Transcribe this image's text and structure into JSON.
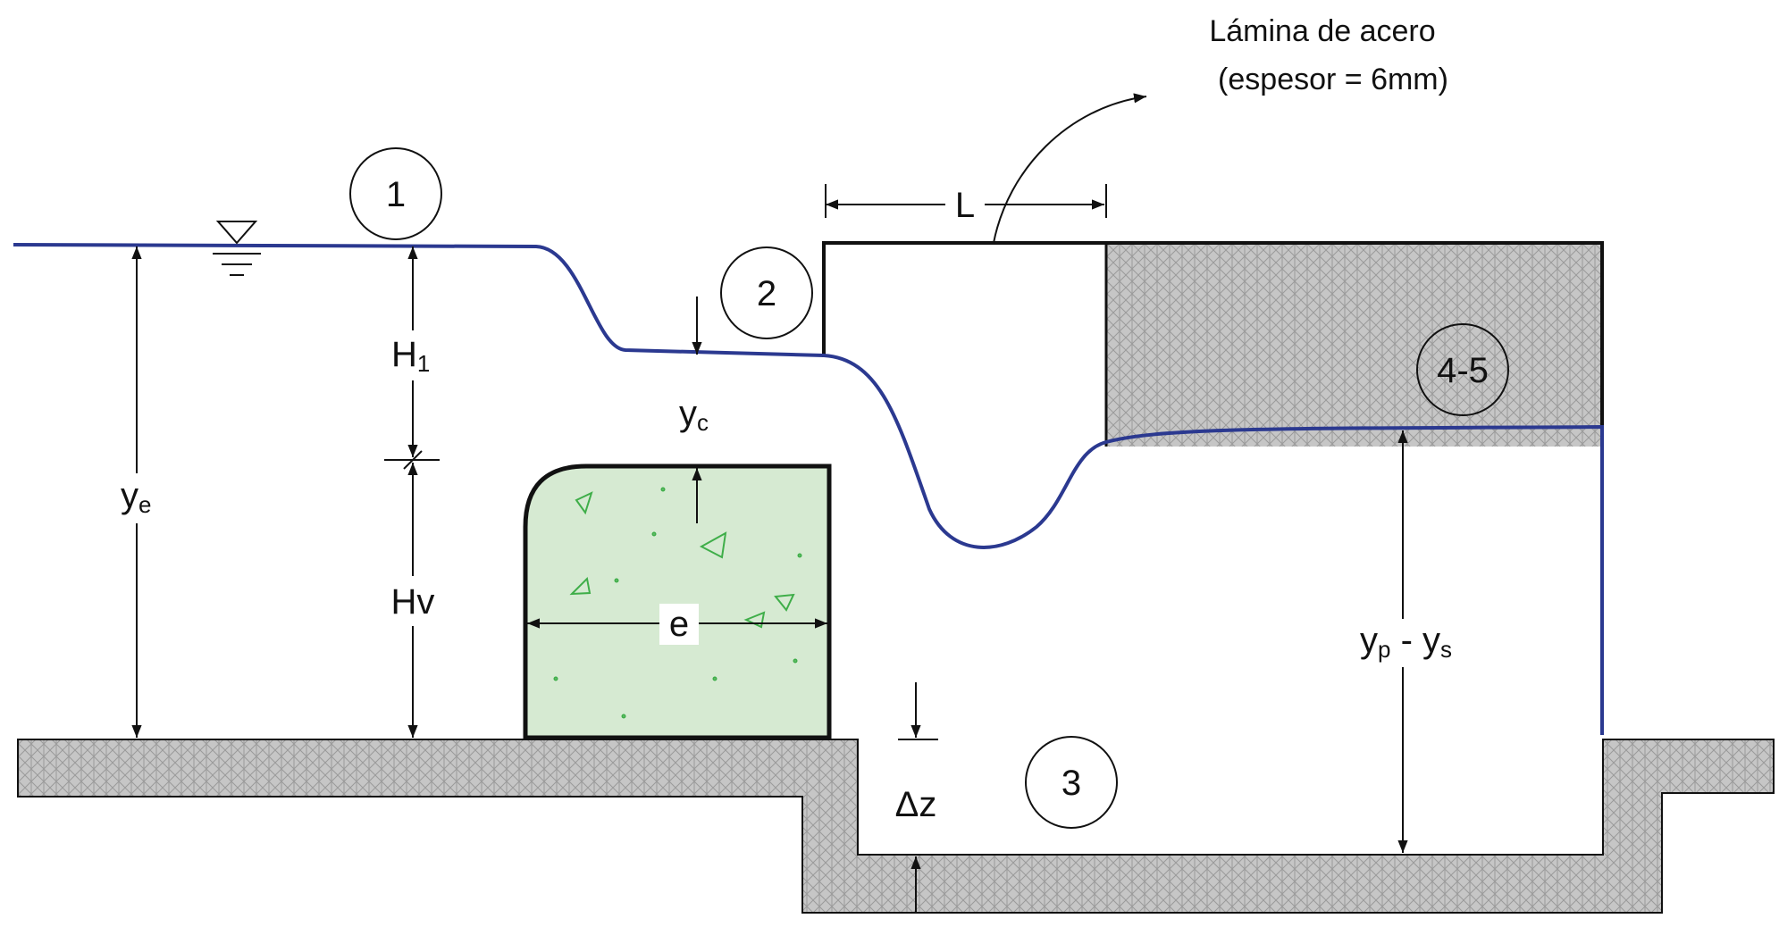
{
  "annotation": {
    "line1": "Lámina de acero",
    "line2": "(espesor = 6mm)"
  },
  "sections": {
    "s1": "1",
    "s2": "2",
    "s3": "3",
    "s45": "4-5"
  },
  "dimensions": {
    "L": "L",
    "H_main": "H",
    "H_sub": "1",
    "Hv": "Hv",
    "y_main": "y",
    "ye_sub": "e",
    "yc_sub": "c",
    "e": "e",
    "dz": "Δz",
    "yp_sub": "p",
    "dash": " - ",
    "ys_sub": "s"
  },
  "colors": {
    "water": "#2B3990",
    "weir_fill": "#D6EAD2",
    "weir_mark": "#3FAE49",
    "hatch_bg": "#C6C6C6",
    "line": "#111111"
  }
}
